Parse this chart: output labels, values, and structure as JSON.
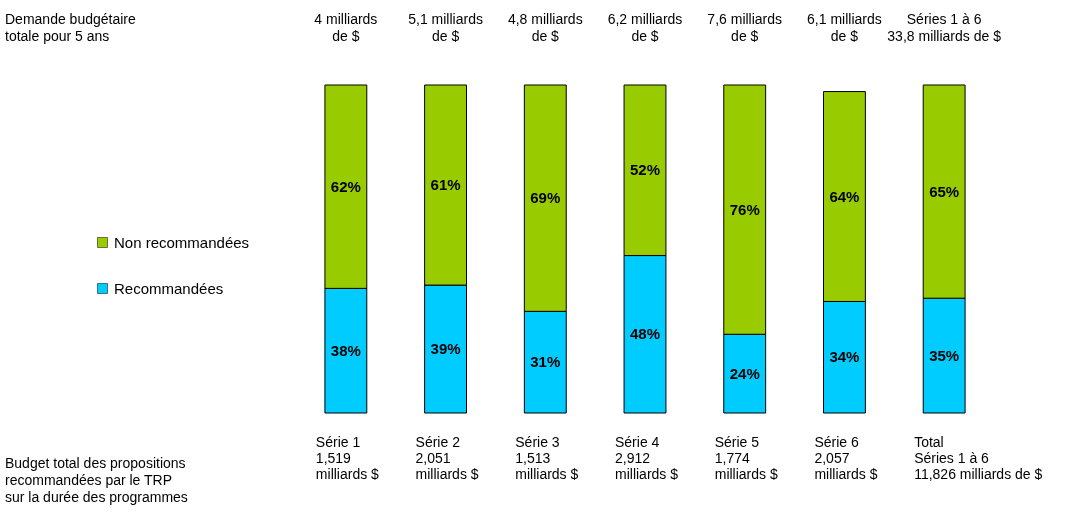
{
  "chart_data": {
    "type": "bar",
    "stacked": true,
    "legend": "left",
    "categories": [
      "Série 1\n1,519\nmilliards $",
      "Série 2\n2,051\nmilliards $",
      "Série 3\n1,513\nmilliards $",
      "Série 4\n2,912\nmilliards $",
      "Série 5\n1,774\nmilliards $",
      "Série 6\n2,057\nmilliards $",
      "Total\nSéries 1 à 6\n11,826 milliards de $"
    ],
    "series": [
      {
        "name": "Recommandées",
        "color": "#00ccff",
        "values": [
          38,
          39,
          31,
          48,
          24,
          34,
          35
        ],
        "value_labels": [
          "38%",
          "39%",
          "31%",
          "48%",
          "24%",
          "34%",
          "35%"
        ]
      },
      {
        "name": "Non recommandées",
        "color": "#99cc00",
        "values": [
          62,
          61,
          69,
          52,
          76,
          64,
          65
        ],
        "value_labels": [
          "62%",
          "61%",
          "69%",
          "52%",
          "76%",
          "64%",
          "65%"
        ]
      }
    ],
    "annotations": [
      "Demande budgétaire\ntotale pour 5 ans",
      "Budget total des propositions\nrecommandées par le TRP\nsur la durée des programmes",
      "4 milliards\nde $",
      "5,1 milliards\nde $",
      "4,8 milliards\nde $",
      "6,2 milliards\nde $",
      "7,6 milliards\nde $",
      "6,1 milliards\nde $",
      "Séries 1 à 6\n33,8 milliards de $"
    ]
  }
}
